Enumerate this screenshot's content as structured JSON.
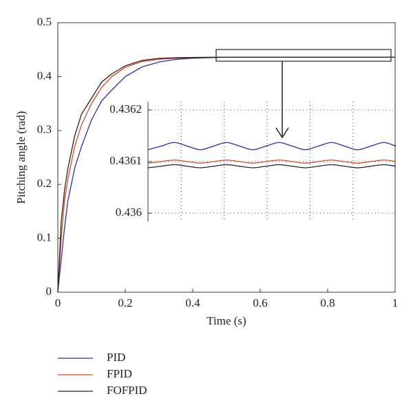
{
  "chart_data": [
    {
      "type": "line",
      "xlabel": "Time (s)",
      "ylabel": "Pitching angle (rad)",
      "x": [
        0,
        0.01,
        0.02,
        0.03,
        0.05,
        0.07,
        0.1,
        0.13,
        0.16,
        0.2,
        0.25,
        0.3,
        0.35,
        0.4,
        0.5,
        0.6,
        0.8,
        1
      ],
      "series": [
        {
          "name": "PID",
          "color": "#2e2e9a",
          "values": [
            0,
            0.06,
            0.12,
            0.17,
            0.23,
            0.27,
            0.32,
            0.355,
            0.375,
            0.4,
            0.418,
            0.427,
            0.432,
            0.434,
            0.4359,
            0.4361,
            0.4361,
            0.4361
          ]
        },
        {
          "name": "FPID",
          "color": "#e0451b",
          "values": [
            0,
            0.1,
            0.17,
            0.21,
            0.27,
            0.31,
            0.35,
            0.38,
            0.4,
            0.417,
            0.428,
            0.432,
            0.434,
            0.435,
            0.4361,
            0.4361,
            0.4361,
            0.4361
          ]
        },
        {
          "name": "FOFPID",
          "color": "#222222",
          "values": [
            0,
            0.13,
            0.19,
            0.23,
            0.29,
            0.33,
            0.36,
            0.39,
            0.405,
            0.42,
            0.43,
            0.434,
            0.435,
            0.4355,
            0.4361,
            0.4361,
            0.4361,
            0.4361
          ]
        }
      ],
      "xlim": [
        0,
        1
      ],
      "xticks": [
        0,
        0.2,
        0.4,
        0.6,
        0.8,
        1
      ],
      "ylim": [
        0,
        0.5
      ],
      "yticks": [
        0,
        0.1,
        0.2,
        0.3,
        0.4,
        0.5
      ]
    },
    {
      "type": "line",
      "x": [
        0.47,
        0.4975,
        0.525,
        0.5525,
        0.58,
        0.6075,
        0.635,
        0.6625,
        0.69,
        0.7175,
        0.745,
        0.7725,
        0.8,
        0.8275,
        0.855,
        0.8825,
        0.91,
        0.9375,
        0.965,
        0.99
      ],
      "series": [
        {
          "color": "#2e2e9a",
          "values": [
            0.436123,
            0.43613,
            0.436137,
            0.43613,
            0.436123,
            0.43613,
            0.436137,
            0.43613,
            0.436123,
            0.43613,
            0.436137,
            0.43613,
            0.436123,
            0.43613,
            0.436137,
            0.43613,
            0.436123,
            0.43613,
            0.436137,
            0.43613
          ]
        },
        {
          "color": "#e0451b",
          "values": [
            0.436097,
            0.4361,
            0.436103,
            0.4361,
            0.436097,
            0.4361,
            0.436103,
            0.4361,
            0.436097,
            0.4361,
            0.436103,
            0.4361,
            0.436097,
            0.4361,
            0.436103,
            0.4361,
            0.436097,
            0.4361,
            0.436103,
            0.4361
          ]
        },
        {
          "color": "#222222",
          "values": [
            0.436088,
            0.436091,
            0.436094,
            0.436091,
            0.436088,
            0.436091,
            0.436094,
            0.436091,
            0.436088,
            0.436091,
            0.436094,
            0.436091,
            0.436088,
            0.436091,
            0.436094,
            0.436091,
            0.436088,
            0.436091,
            0.436094,
            0.436091
          ]
        }
      ],
      "xlim": [
        0.47,
        0.99
      ],
      "xticks": [
        0.54,
        0.63,
        0.72,
        0.81,
        0.9
      ],
      "ylim": [
        0.436,
        0.4362
      ],
      "yticks": [
        0.436,
        0.4361,
        0.4362
      ],
      "grid": true
    }
  ]
}
